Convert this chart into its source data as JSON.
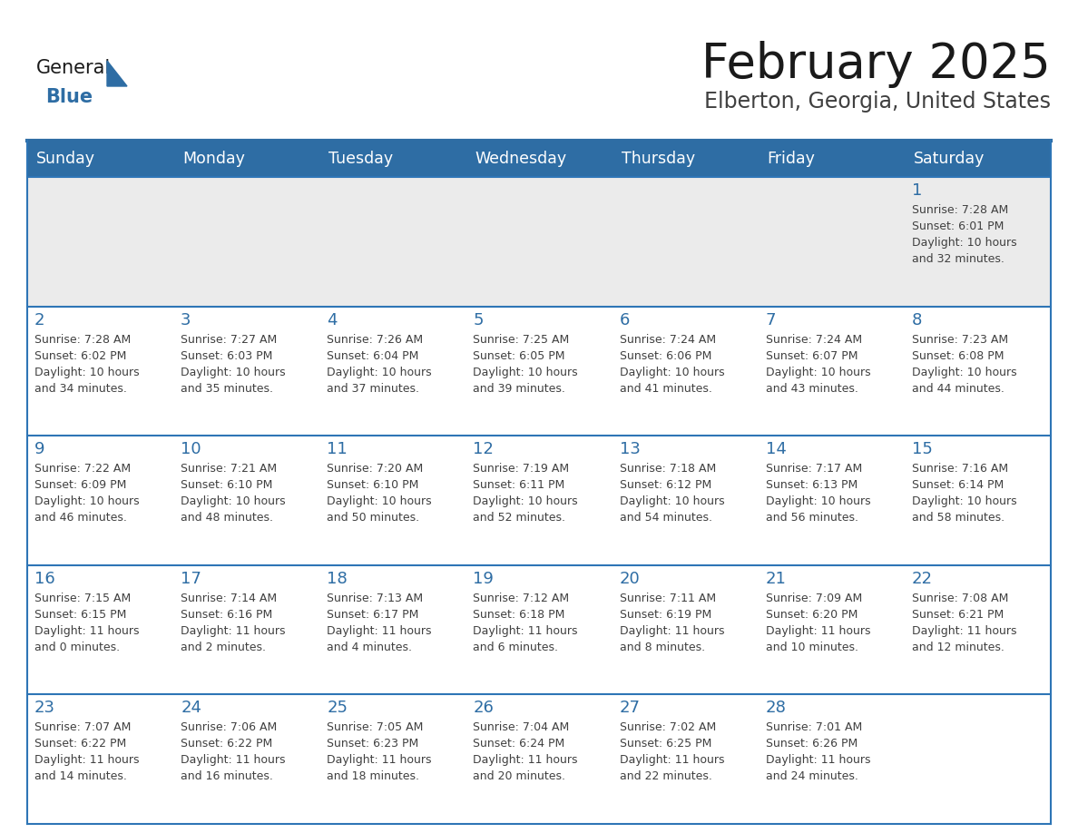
{
  "title": "February 2025",
  "subtitle": "Elberton, Georgia, United States",
  "days_of_week": [
    "Sunday",
    "Monday",
    "Tuesday",
    "Wednesday",
    "Thursday",
    "Friday",
    "Saturday"
  ],
  "header_bg": "#2E6DA4",
  "header_text_color": "#FFFFFF",
  "cell_bg_light": "#EBEBEB",
  "cell_bg_white": "#FFFFFF",
  "cell_border_color": "#2E75B6",
  "day_number_color": "#2E6DA4",
  "cell_text_color": "#404040",
  "title_color": "#1a1a1a",
  "subtitle_color": "#404040",
  "logo_general_color": "#1a1a1a",
  "logo_blue_color": "#2E6DA4",
  "fig_width": 11.88,
  "fig_height": 9.18,
  "weeks": [
    [
      {
        "day": null,
        "info": ""
      },
      {
        "day": null,
        "info": ""
      },
      {
        "day": null,
        "info": ""
      },
      {
        "day": null,
        "info": ""
      },
      {
        "day": null,
        "info": ""
      },
      {
        "day": null,
        "info": ""
      },
      {
        "day": 1,
        "info": "Sunrise: 7:28 AM\nSunset: 6:01 PM\nDaylight: 10 hours\nand 32 minutes."
      }
    ],
    [
      {
        "day": 2,
        "info": "Sunrise: 7:28 AM\nSunset: 6:02 PM\nDaylight: 10 hours\nand 34 minutes."
      },
      {
        "day": 3,
        "info": "Sunrise: 7:27 AM\nSunset: 6:03 PM\nDaylight: 10 hours\nand 35 minutes."
      },
      {
        "day": 4,
        "info": "Sunrise: 7:26 AM\nSunset: 6:04 PM\nDaylight: 10 hours\nand 37 minutes."
      },
      {
        "day": 5,
        "info": "Sunrise: 7:25 AM\nSunset: 6:05 PM\nDaylight: 10 hours\nand 39 minutes."
      },
      {
        "day": 6,
        "info": "Sunrise: 7:24 AM\nSunset: 6:06 PM\nDaylight: 10 hours\nand 41 minutes."
      },
      {
        "day": 7,
        "info": "Sunrise: 7:24 AM\nSunset: 6:07 PM\nDaylight: 10 hours\nand 43 minutes."
      },
      {
        "day": 8,
        "info": "Sunrise: 7:23 AM\nSunset: 6:08 PM\nDaylight: 10 hours\nand 44 minutes."
      }
    ],
    [
      {
        "day": 9,
        "info": "Sunrise: 7:22 AM\nSunset: 6:09 PM\nDaylight: 10 hours\nand 46 minutes."
      },
      {
        "day": 10,
        "info": "Sunrise: 7:21 AM\nSunset: 6:10 PM\nDaylight: 10 hours\nand 48 minutes."
      },
      {
        "day": 11,
        "info": "Sunrise: 7:20 AM\nSunset: 6:10 PM\nDaylight: 10 hours\nand 50 minutes."
      },
      {
        "day": 12,
        "info": "Sunrise: 7:19 AM\nSunset: 6:11 PM\nDaylight: 10 hours\nand 52 minutes."
      },
      {
        "day": 13,
        "info": "Sunrise: 7:18 AM\nSunset: 6:12 PM\nDaylight: 10 hours\nand 54 minutes."
      },
      {
        "day": 14,
        "info": "Sunrise: 7:17 AM\nSunset: 6:13 PM\nDaylight: 10 hours\nand 56 minutes."
      },
      {
        "day": 15,
        "info": "Sunrise: 7:16 AM\nSunset: 6:14 PM\nDaylight: 10 hours\nand 58 minutes."
      }
    ],
    [
      {
        "day": 16,
        "info": "Sunrise: 7:15 AM\nSunset: 6:15 PM\nDaylight: 11 hours\nand 0 minutes."
      },
      {
        "day": 17,
        "info": "Sunrise: 7:14 AM\nSunset: 6:16 PM\nDaylight: 11 hours\nand 2 minutes."
      },
      {
        "day": 18,
        "info": "Sunrise: 7:13 AM\nSunset: 6:17 PM\nDaylight: 11 hours\nand 4 minutes."
      },
      {
        "day": 19,
        "info": "Sunrise: 7:12 AM\nSunset: 6:18 PM\nDaylight: 11 hours\nand 6 minutes."
      },
      {
        "day": 20,
        "info": "Sunrise: 7:11 AM\nSunset: 6:19 PM\nDaylight: 11 hours\nand 8 minutes."
      },
      {
        "day": 21,
        "info": "Sunrise: 7:09 AM\nSunset: 6:20 PM\nDaylight: 11 hours\nand 10 minutes."
      },
      {
        "day": 22,
        "info": "Sunrise: 7:08 AM\nSunset: 6:21 PM\nDaylight: 11 hours\nand 12 minutes."
      }
    ],
    [
      {
        "day": 23,
        "info": "Sunrise: 7:07 AM\nSunset: 6:22 PM\nDaylight: 11 hours\nand 14 minutes."
      },
      {
        "day": 24,
        "info": "Sunrise: 7:06 AM\nSunset: 6:22 PM\nDaylight: 11 hours\nand 16 minutes."
      },
      {
        "day": 25,
        "info": "Sunrise: 7:05 AM\nSunset: 6:23 PM\nDaylight: 11 hours\nand 18 minutes."
      },
      {
        "day": 26,
        "info": "Sunrise: 7:04 AM\nSunset: 6:24 PM\nDaylight: 11 hours\nand 20 minutes."
      },
      {
        "day": 27,
        "info": "Sunrise: 7:02 AM\nSunset: 6:25 PM\nDaylight: 11 hours\nand 22 minutes."
      },
      {
        "day": 28,
        "info": "Sunrise: 7:01 AM\nSunset: 6:26 PM\nDaylight: 11 hours\nand 24 minutes."
      },
      {
        "day": null,
        "info": ""
      }
    ]
  ]
}
